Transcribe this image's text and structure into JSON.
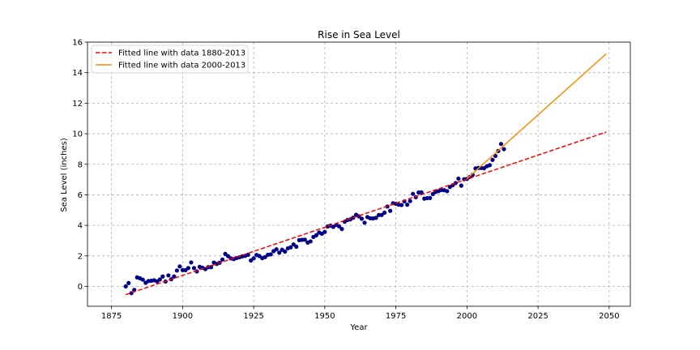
{
  "chart_data": {
    "type": "scatter",
    "title": "Rise in Sea Level",
    "xlabel": "Year",
    "ylabel": "Sea Level (inches)",
    "xlim": [
      1866.55,
      2057.45
    ],
    "ylim": [
      -1.3,
      16
    ],
    "xticks": [
      1875,
      1900,
      1925,
      1950,
      1975,
      2000,
      2025,
      2050
    ],
    "yticks": [
      0,
      2,
      4,
      6,
      8,
      10,
      12,
      14,
      16
    ],
    "grid": true,
    "legend_position": "top-left",
    "scatter_color": "#00008b",
    "x": [
      1880,
      1881,
      1882,
      1883,
      1884,
      1885,
      1886,
      1887,
      1888,
      1889,
      1890,
      1891,
      1892,
      1893,
      1894,
      1895,
      1896,
      1897,
      1898,
      1899,
      1900,
      1901,
      1902,
      1903,
      1904,
      1905,
      1906,
      1907,
      1908,
      1909,
      1910,
      1911,
      1912,
      1913,
      1914,
      1915,
      1916,
      1917,
      1918,
      1919,
      1920,
      1921,
      1922,
      1923,
      1924,
      1925,
      1926,
      1927,
      1928,
      1929,
      1930,
      1931,
      1932,
      1933,
      1934,
      1935,
      1936,
      1937,
      1938,
      1939,
      1940,
      1941,
      1942,
      1943,
      1944,
      1945,
      1946,
      1947,
      1948,
      1949,
      1950,
      1951,
      1952,
      1953,
      1954,
      1955,
      1956,
      1957,
      1958,
      1959,
      1960,
      1961,
      1962,
      1963,
      1964,
      1965,
      1966,
      1967,
      1968,
      1969,
      1970,
      1971,
      1972,
      1973,
      1974,
      1975,
      1976,
      1977,
      1978,
      1979,
      1980,
      1981,
      1982,
      1983,
      1984,
      1985,
      1986,
      1987,
      1988,
      1989,
      1990,
      1991,
      1992,
      1993,
      1994,
      1995,
      1996,
      1997,
      1998,
      1999,
      2000,
      2001,
      2002,
      2003,
      2004,
      2005,
      2006,
      2007,
      2008,
      2009,
      2010,
      2011,
      2012,
      2013
    ],
    "y": [
      0.0,
      0.22,
      -0.44,
      -0.23,
      0.59,
      0.53,
      0.44,
      0.24,
      0.35,
      0.37,
      0.4,
      0.33,
      0.45,
      0.65,
      0.32,
      0.72,
      0.47,
      0.65,
      1.04,
      1.31,
      1.07,
      1.06,
      1.2,
      1.57,
      1.2,
      0.98,
      1.28,
      1.22,
      1.13,
      1.26,
      1.26,
      1.56,
      1.47,
      1.55,
      1.76,
      2.13,
      1.98,
      1.83,
      1.79,
      1.86,
      1.91,
      1.97,
      2.0,
      2.07,
      1.7,
      1.84,
      2.06,
      1.99,
      1.85,
      1.92,
      2.07,
      2.1,
      2.31,
      2.43,
      2.21,
      2.4,
      2.28,
      2.49,
      2.56,
      2.75,
      2.6,
      3.03,
      3.05,
      3.06,
      2.87,
      2.95,
      3.24,
      3.35,
      3.53,
      3.45,
      3.57,
      3.92,
      3.98,
      3.9,
      4.03,
      3.94,
      3.76,
      4.24,
      4.35,
      4.39,
      4.5,
      4.69,
      4.59,
      4.43,
      4.17,
      4.54,
      4.46,
      4.45,
      4.49,
      4.68,
      4.68,
      4.83,
      5.23,
      4.95,
      5.45,
      5.41,
      5.35,
      5.33,
      5.57,
      5.35,
      5.59,
      6.06,
      5.84,
      6.15,
      6.16,
      5.75,
      5.78,
      5.79,
      6.05,
      6.19,
      6.24,
      6.31,
      6.3,
      6.24,
      6.51,
      6.63,
      6.77,
      7.06,
      6.6,
      7.02,
      7.04,
      7.17,
      7.31,
      7.73,
      7.76,
      7.76,
      7.74,
      7.87,
      7.94,
      8.29,
      8.55,
      8.87,
      9.33,
      8.99
    ],
    "series": [
      {
        "name": "Fitted line with data 1880-2013",
        "color": "#ff0000",
        "dash": "dashed",
        "x": [
          1880,
          2049
        ],
        "y": [
          -0.54,
          10.11
        ]
      },
      {
        "name": "Fitted line with data 2000-2013",
        "color": "#ff8c00",
        "dash": "solid",
        "x": [
          2000,
          2049
        ],
        "y": [
          7.06,
          15.24
        ]
      }
    ]
  }
}
